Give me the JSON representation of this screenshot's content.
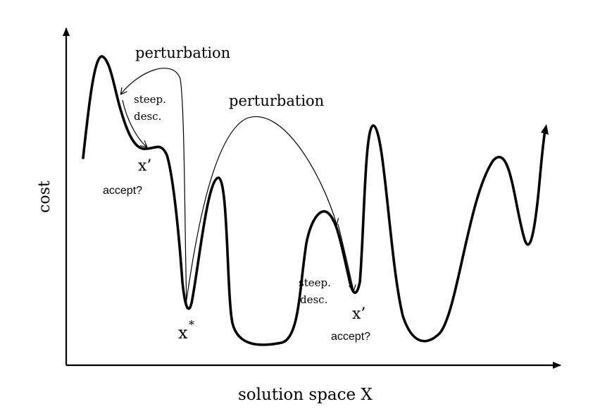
{
  "axes": {
    "x_label": "solution space X",
    "y_label": "cost"
  },
  "annotations": {
    "perturbation_1": "perturbation",
    "perturbation_2": "perturbation",
    "steep_desc_1": [
      "steep.",
      "desc."
    ],
    "steep_desc_2": [
      "steep.",
      "desc."
    ],
    "x_prime_1": "x’",
    "accept_1": "accept?",
    "x_star": "x",
    "x_star_sup": "*",
    "x_prime_2": "x’",
    "accept_2": "accept?"
  },
  "colors": {
    "stroke": "#000000",
    "background": "#ffffff"
  }
}
